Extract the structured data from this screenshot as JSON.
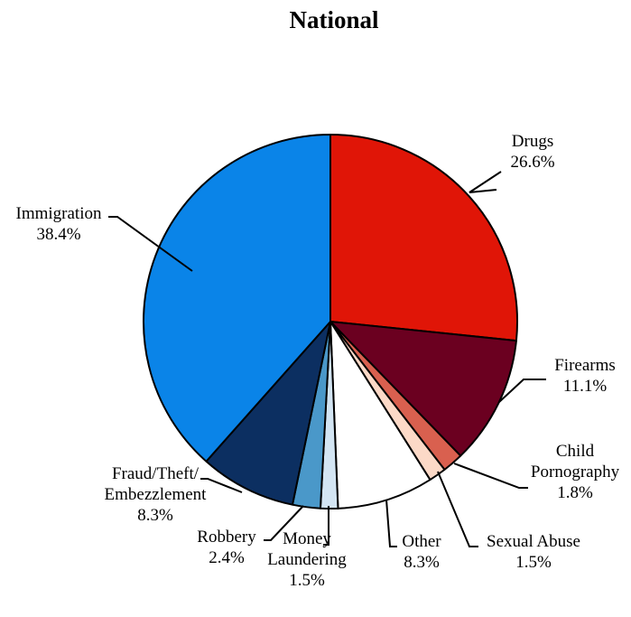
{
  "chart_data": {
    "type": "pie",
    "title": "National",
    "start_angle_deg": 0,
    "direction": "clockwise",
    "slices": [
      {
        "label": "Drugs",
        "value": 26.6,
        "value_label": "26.6%",
        "color": "#e01507"
      },
      {
        "label": "Firearms",
        "value": 11.1,
        "value_label": "11.1%",
        "color": "#6b0020"
      },
      {
        "label": "Child Pornography",
        "value": 1.8,
        "value_label": "1.8%",
        "color": "#d9604f"
      },
      {
        "label": "Sexual Abuse",
        "value": 1.5,
        "value_label": "1.5%",
        "color": "#fcd9c7"
      },
      {
        "label": "Other",
        "value": 8.3,
        "value_label": "8.3%",
        "color": "#ffffff"
      },
      {
        "label": "Money Laundering",
        "value": 1.5,
        "value_label": "1.5%",
        "color": "#d3e5f3"
      },
      {
        "label": "Robbery",
        "value": 2.4,
        "value_label": "2.4%",
        "color": "#4a98c9"
      },
      {
        "label": "Fraud/Theft/ Embezzlement",
        "value": 8.3,
        "value_label": "8.3%",
        "color": "#0c2f61"
      },
      {
        "label": "Immigration",
        "value": 38.4,
        "value_label": "38.4%",
        "color": "#0a84e8"
      }
    ]
  }
}
